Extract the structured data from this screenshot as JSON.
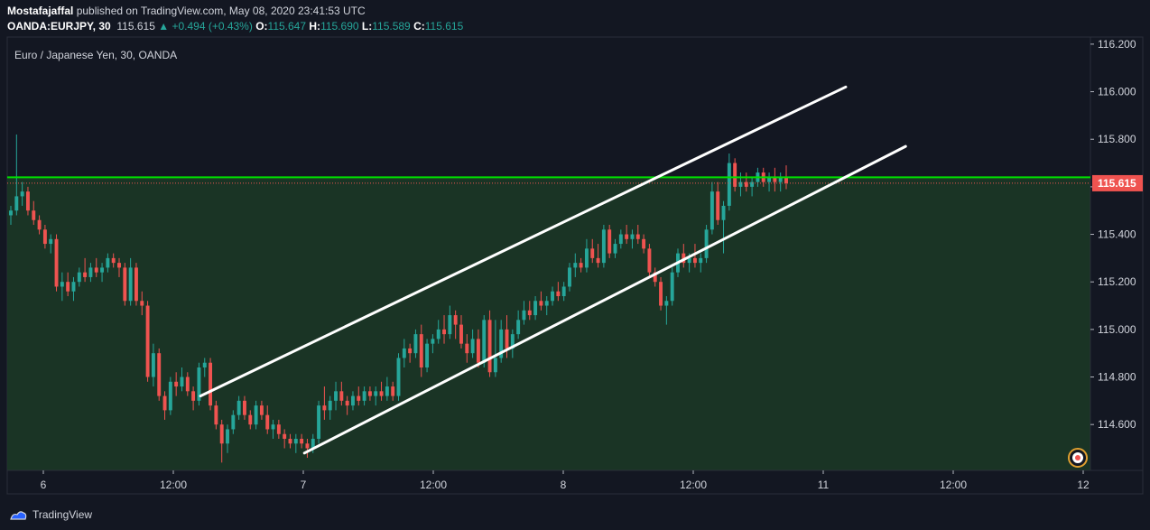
{
  "header": {
    "author": "Mostafajaffal",
    "published_text": "published on TradingView.com, May 08, 2020 23:41:53 UTC",
    "symbol": "OANDA:EURJPY, 30",
    "last": "115.615",
    "change": "+0.494 (+0.43%)",
    "o_label": "O:",
    "o": "115.647",
    "h_label": "H:",
    "h": "115.690",
    "l_label": "L:",
    "l": "115.589",
    "c_label": "C:",
    "c": "115.615"
  },
  "footer": {
    "brand": "TradingView"
  },
  "colors": {
    "up": "#26a69a",
    "down": "#ef5350",
    "support_line": "#00e000",
    "channel": "#ffffff",
    "price_tag": "#ef5350",
    "shade": "#1c3a26"
  },
  "chart_data": {
    "type": "candlestick",
    "title": "Euro / Japanese Yen, 30, OANDA",
    "ylim": [
      114.407,
      116.23
    ],
    "y_ticks": [
      "116.200",
      "116.000",
      "115.800",
      "115.600",
      "115.400",
      "115.200",
      "115.000",
      "114.800",
      "114.600"
    ],
    "x_ticks": [
      "6",
      "12:00",
      "7",
      "12:00",
      "8",
      "12:00",
      "11",
      "12:00",
      "12"
    ],
    "last_price": "115.615",
    "horizontal_level": 115.64,
    "channel_upper": {
      "from": [
        7.39,
        114.72
      ],
      "to": [
        13.1,
        116.02
      ]
    },
    "channel_lower": {
      "from": [
        8.31,
        114.48
      ],
      "to": [
        13.63,
        115.77
      ]
    },
    "candles": [
      [
        115.48,
        115.52,
        115.44,
        115.5
      ],
      [
        115.5,
        115.82,
        115.48,
        115.56
      ],
      [
        115.56,
        115.62,
        115.52,
        115.58
      ],
      [
        115.58,
        115.6,
        115.48,
        115.5
      ],
      [
        115.5,
        115.54,
        115.44,
        115.46
      ],
      [
        115.46,
        115.48,
        115.4,
        115.42
      ],
      [
        115.42,
        115.44,
        115.34,
        115.36
      ],
      [
        115.36,
        115.4,
        115.32,
        115.38
      ],
      [
        115.38,
        115.4,
        115.16,
        115.18
      ],
      [
        115.18,
        115.24,
        115.12,
        115.2
      ],
      [
        115.2,
        115.24,
        115.14,
        115.16
      ],
      [
        115.16,
        115.22,
        115.12,
        115.2
      ],
      [
        115.2,
        115.26,
        115.18,
        115.24
      ],
      [
        115.24,
        115.3,
        115.2,
        115.22
      ],
      [
        115.22,
        115.28,
        115.2,
        115.26
      ],
      [
        115.26,
        115.3,
        115.22,
        115.24
      ],
      [
        115.24,
        115.28,
        115.2,
        115.26
      ],
      [
        115.26,
        115.32,
        115.24,
        115.3
      ],
      [
        115.3,
        115.32,
        115.26,
        115.28
      ],
      [
        115.28,
        115.3,
        115.22,
        115.26
      ],
      [
        115.26,
        115.28,
        115.1,
        115.12
      ],
      [
        115.12,
        115.3,
        115.1,
        115.26
      ],
      [
        115.26,
        115.28,
        115.1,
        115.12
      ],
      [
        115.12,
        115.16,
        115.06,
        115.1
      ],
      [
        115.1,
        115.12,
        114.78,
        114.8
      ],
      [
        114.8,
        114.94,
        114.76,
        114.9
      ],
      [
        114.9,
        114.92,
        114.7,
        114.72
      ],
      [
        114.72,
        114.74,
        114.62,
        114.66
      ],
      [
        114.66,
        114.8,
        114.64,
        114.78
      ],
      [
        114.78,
        114.82,
        114.72,
        114.76
      ],
      [
        114.76,
        114.84,
        114.74,
        114.8
      ],
      [
        114.8,
        114.82,
        114.72,
        114.74
      ],
      [
        114.74,
        114.76,
        114.66,
        114.7
      ],
      [
        114.7,
        114.86,
        114.68,
        114.84
      ],
      [
        114.84,
        114.88,
        114.8,
        114.86
      ],
      [
        114.86,
        114.88,
        114.66,
        114.68
      ],
      [
        114.68,
        114.7,
        114.58,
        114.6
      ],
      [
        114.6,
        114.62,
        114.44,
        114.52
      ],
      [
        114.52,
        114.6,
        114.48,
        114.58
      ],
      [
        114.58,
        114.66,
        114.56,
        114.64
      ],
      [
        114.64,
        114.72,
        114.62,
        114.7
      ],
      [
        114.7,
        114.72,
        114.62,
        114.64
      ],
      [
        114.64,
        114.66,
        114.58,
        114.6
      ],
      [
        114.6,
        114.7,
        114.58,
        114.68
      ],
      [
        114.68,
        114.7,
        114.62,
        114.64
      ],
      [
        114.64,
        114.68,
        114.56,
        114.58
      ],
      [
        114.58,
        114.62,
        114.54,
        114.6
      ],
      [
        114.6,
        114.62,
        114.54,
        114.56
      ],
      [
        114.56,
        114.58,
        114.5,
        114.54
      ],
      [
        114.54,
        114.56,
        114.5,
        114.52
      ],
      [
        114.52,
        114.56,
        114.48,
        114.54
      ],
      [
        114.54,
        114.56,
        114.5,
        114.52
      ],
      [
        114.52,
        114.54,
        114.46,
        114.5
      ],
      [
        114.5,
        114.56,
        114.48,
        114.54
      ],
      [
        114.54,
        114.7,
        114.52,
        114.68
      ],
      [
        114.68,
        114.76,
        114.62,
        114.66
      ],
      [
        114.66,
        114.72,
        114.62,
        114.7
      ],
      [
        114.7,
        114.78,
        114.66,
        114.74
      ],
      [
        114.74,
        114.78,
        114.68,
        114.7
      ],
      [
        114.7,
        114.72,
        114.64,
        114.68
      ],
      [
        114.68,
        114.74,
        114.66,
        114.72
      ],
      [
        114.72,
        114.76,
        114.68,
        114.7
      ],
      [
        114.7,
        114.76,
        114.68,
        114.74
      ],
      [
        114.74,
        114.76,
        114.7,
        114.72
      ],
      [
        114.72,
        114.76,
        114.68,
        114.74
      ],
      [
        114.74,
        114.78,
        114.7,
        114.72
      ],
      [
        114.72,
        114.8,
        114.7,
        114.76
      ],
      [
        114.76,
        114.78,
        114.7,
        114.72
      ],
      [
        114.72,
        114.9,
        114.7,
        114.88
      ],
      [
        114.88,
        114.96,
        114.84,
        114.92
      ],
      [
        114.92,
        114.94,
        114.86,
        114.9
      ],
      [
        114.9,
        115.0,
        114.88,
        114.98
      ],
      [
        114.98,
        115.02,
        114.8,
        114.84
      ],
      [
        114.84,
        114.96,
        114.82,
        114.94
      ],
      [
        114.94,
        114.98,
        114.9,
        114.96
      ],
      [
        114.96,
        115.04,
        114.94,
        115.0
      ],
      [
        115.0,
        115.06,
        114.94,
        114.98
      ],
      [
        114.98,
        115.1,
        114.96,
        115.06
      ],
      [
        115.06,
        115.08,
        114.96,
        115.02
      ],
      [
        115.02,
        115.06,
        114.92,
        114.94
      ],
      [
        114.94,
        114.98,
        114.86,
        114.9
      ],
      [
        114.9,
        115.0,
        114.88,
        114.96
      ],
      [
        114.96,
        115.0,
        114.84,
        114.86
      ],
      [
        114.86,
        115.06,
        114.84,
        115.04
      ],
      [
        115.04,
        115.08,
        114.8,
        114.82
      ],
      [
        114.82,
        115.04,
        114.8,
        114.88
      ],
      [
        114.88,
        115.04,
        114.86,
        115.0
      ],
      [
        115.0,
        115.06,
        114.88,
        114.92
      ],
      [
        114.92,
        115.0,
        114.88,
        114.98
      ],
      [
        114.98,
        115.08,
        114.96,
        115.04
      ],
      [
        115.04,
        115.12,
        115.02,
        115.08
      ],
      [
        115.08,
        115.12,
        115.04,
        115.06
      ],
      [
        115.06,
        115.14,
        115.04,
        115.12
      ],
      [
        115.12,
        115.16,
        115.08,
        115.1
      ],
      [
        115.1,
        115.14,
        115.06,
        115.12
      ],
      [
        115.12,
        115.18,
        115.1,
        115.16
      ],
      [
        115.16,
        115.2,
        115.12,
        115.14
      ],
      [
        115.14,
        115.2,
        115.12,
        115.18
      ],
      [
        115.18,
        115.28,
        115.16,
        115.26
      ],
      [
        115.26,
        115.32,
        115.22,
        115.28
      ],
      [
        115.28,
        115.3,
        115.24,
        115.26
      ],
      [
        115.26,
        115.38,
        115.24,
        115.34
      ],
      [
        115.34,
        115.38,
        115.28,
        115.3
      ],
      [
        115.3,
        115.36,
        115.26,
        115.28
      ],
      [
        115.28,
        115.44,
        115.26,
        115.42
      ],
      [
        115.42,
        115.44,
        115.3,
        115.32
      ],
      [
        115.32,
        115.38,
        115.3,
        115.36
      ],
      [
        115.36,
        115.42,
        115.34,
        115.4
      ],
      [
        115.4,
        115.44,
        115.36,
        115.38
      ],
      [
        115.38,
        115.42,
        115.34,
        115.4
      ],
      [
        115.4,
        115.44,
        115.36,
        115.38
      ],
      [
        115.38,
        115.4,
        115.32,
        115.34
      ],
      [
        115.34,
        115.36,
        115.22,
        115.24
      ],
      [
        115.24,
        115.26,
        115.18,
        115.2
      ],
      [
        115.2,
        115.22,
        115.08,
        115.1
      ],
      [
        115.1,
        115.14,
        115.02,
        115.12
      ],
      [
        115.12,
        115.26,
        115.1,
        115.24
      ],
      [
        115.24,
        115.34,
        115.22,
        115.32
      ],
      [
        115.32,
        115.36,
        115.26,
        115.28
      ],
      [
        115.28,
        115.32,
        115.24,
        115.3
      ],
      [
        115.3,
        115.36,
        115.26,
        115.28
      ],
      [
        115.28,
        115.32,
        115.24,
        115.3
      ],
      [
        115.3,
        115.44,
        115.28,
        115.42
      ],
      [
        115.42,
        115.62,
        115.4,
        115.58
      ],
      [
        115.58,
        115.62,
        115.44,
        115.46
      ],
      [
        115.46,
        115.54,
        115.32,
        115.52
      ],
      [
        115.52,
        115.74,
        115.5,
        115.7
      ],
      [
        115.7,
        115.72,
        115.58,
        115.6
      ],
      [
        115.6,
        115.66,
        115.56,
        115.62
      ],
      [
        115.62,
        115.66,
        115.58,
        115.6
      ],
      [
        115.6,
        115.64,
        115.56,
        115.62
      ],
      [
        115.62,
        115.68,
        115.6,
        115.66
      ],
      [
        115.66,
        115.68,
        115.6,
        115.62
      ],
      [
        115.62,
        115.66,
        115.58,
        115.64
      ],
      [
        115.64,
        115.68,
        115.58,
        115.62
      ],
      [
        115.62,
        115.66,
        115.58,
        115.64
      ],
      [
        115.64,
        115.69,
        115.59,
        115.615
      ]
    ]
  }
}
